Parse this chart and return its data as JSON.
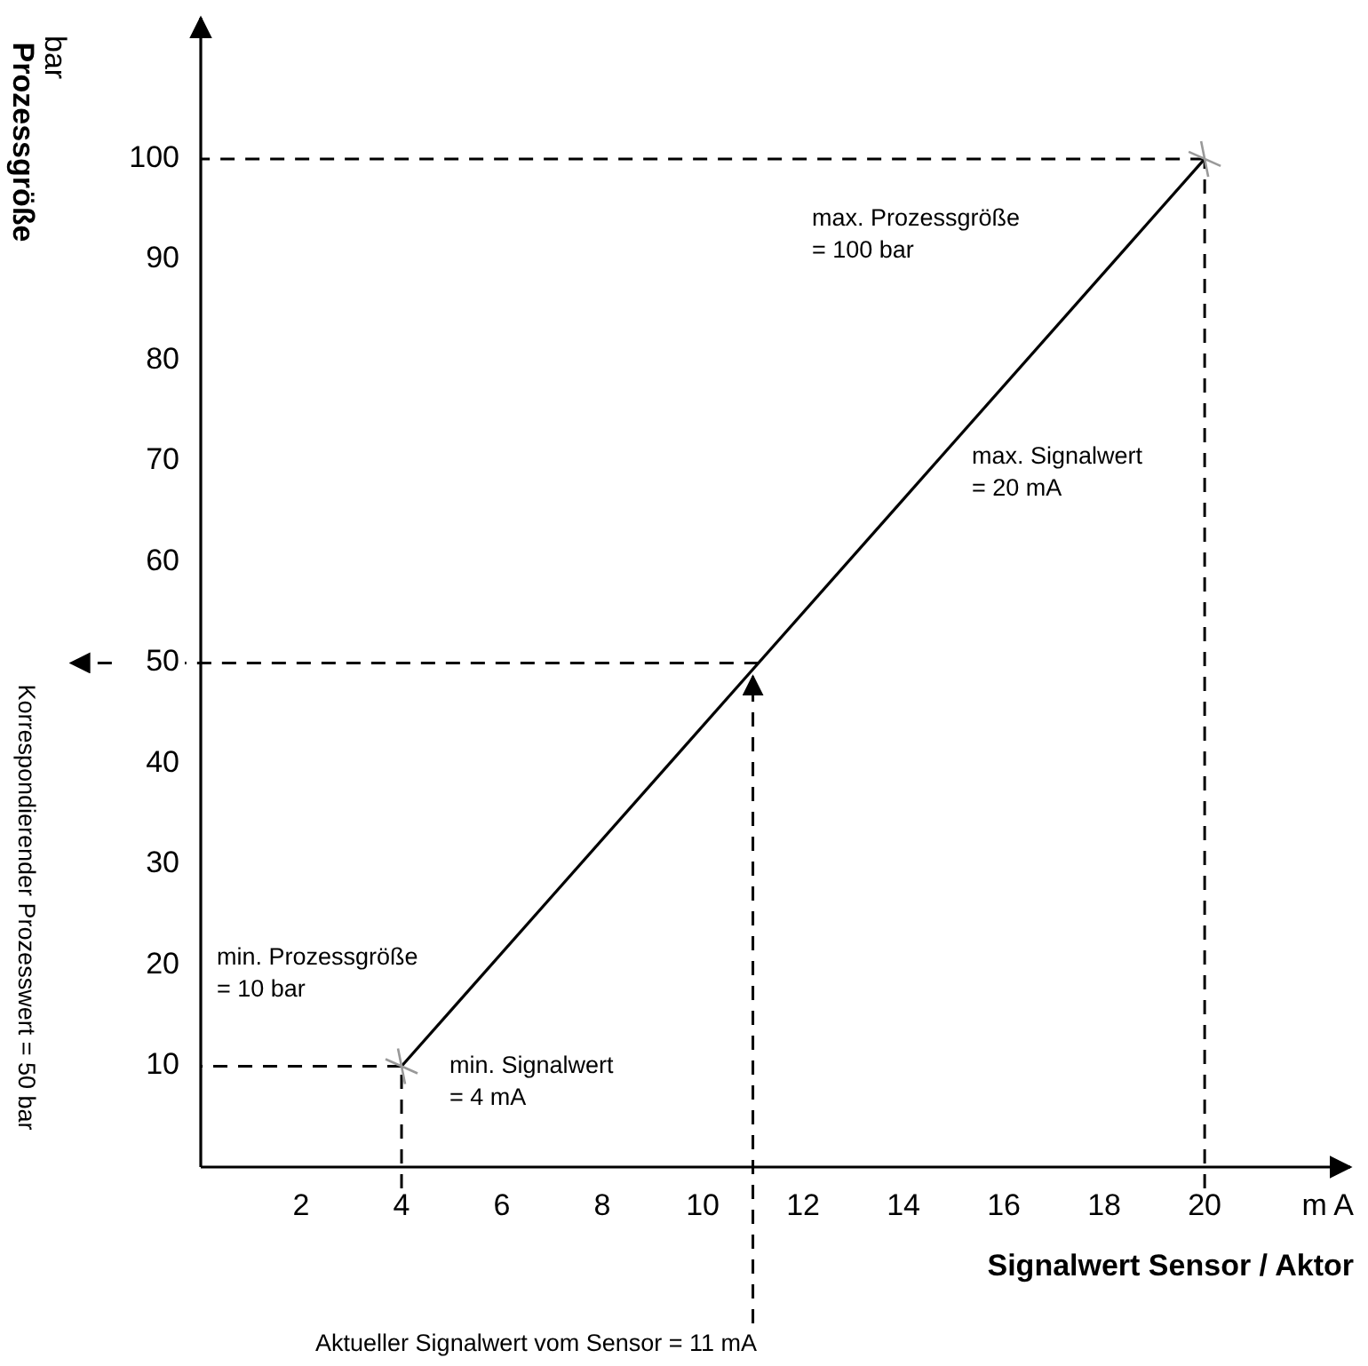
{
  "chart_data": {
    "type": "line",
    "xlabel": "Signalwert Sensor / Aktor",
    "ylabel": "Prozessgröße",
    "series": [
      {
        "color": "#000000",
        "x": [
          4,
          20
        ],
        "values": [
          10,
          100
        ]
      }
    ],
    "marker": "cross",
    "line_style": "solid",
    "grid": false,
    "xlim": [
      0,
      22.9
    ],
    "ylim": [
      0,
      114
    ],
    "xticks": [
      2,
      4,
      6,
      8,
      10,
      12,
      14,
      16,
      18,
      20
    ],
    "yticks": [
      10,
      20,
      30,
      40,
      50,
      60,
      70,
      80,
      90,
      100
    ],
    "ref_lines": [
      {
        "axis": "x",
        "value": 4,
        "line_style": "dashed"
      },
      {
        "axis": "x",
        "value": 20,
        "line_style": "dashed"
      },
      {
        "axis": "y",
        "value": 10,
        "line_style": "dashed"
      },
      {
        "axis": "y",
        "value": 100,
        "line_style": "dashed"
      },
      {
        "axis": "x",
        "value": 11,
        "line_style": "dashed",
        "label": "Aktueller Signalwert vom Sensor = 11 mA"
      },
      {
        "axis": "y",
        "value": 50,
        "line_style": "dashed",
        "label": "Korrespondierender Prozesswert = 50 bar"
      }
    ],
    "annotations": [
      "min. Prozessgröße\n= 10 bar",
      "min. Signalwert\n= 4 mA",
      "max. Prozessgröße\n= 100 bar",
      "max. Signalwert\n= 20 mA",
      "bar",
      "m A"
    ]
  }
}
